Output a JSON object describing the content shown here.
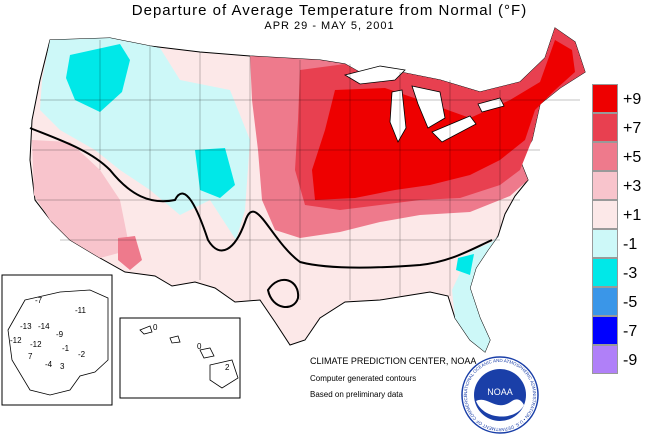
{
  "title": "Departure of Average Temperature from Normal (°F)",
  "subtitle": "APR 29 - MAY 5, 2001",
  "legend": [
    {
      "label": "+9",
      "color": "#ee0000"
    },
    {
      "label": "+7",
      "color": "#e84050"
    },
    {
      "label": "+5",
      "color": "#ee7a8c"
    },
    {
      "label": "+3",
      "color": "#f8c4cc"
    },
    {
      "label": "+1",
      "color": "#fce8e8"
    },
    {
      "label": "-1",
      "color": "#cdf8f8"
    },
    {
      "label": "-3",
      "color": "#00e8e8"
    },
    {
      "label": "-5",
      "color": "#3a96e8"
    },
    {
      "label": "-7",
      "color": "#0000ff"
    },
    {
      "label": "-9",
      "color": "#b080f8"
    }
  ],
  "credits": {
    "center": "CLIMATE PREDICTION CENTER, NOAA",
    "line2": "Computer generated contours",
    "line3": "Based on preliminary data"
  },
  "logo": {
    "text": "NOAA",
    "ring": "NATIONAL OCEANIC AND ATMOSPHERIC ADMINISTRATION • U.S. DEPARTMENT OF COMMERCE"
  },
  "alaska_values": [
    "-7",
    "-11",
    "-13",
    "-14",
    "-9",
    "-12",
    "-12",
    "-1",
    "-2",
    "7",
    "-4",
    "3"
  ],
  "hawaii_values": [
    "0",
    "0",
    "2"
  ]
}
